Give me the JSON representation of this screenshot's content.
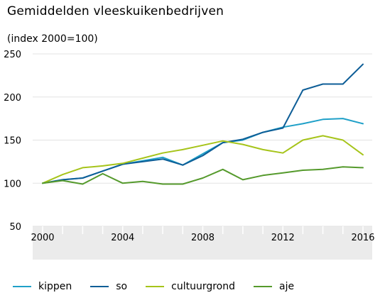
{
  "chart_data": {
    "type": "line",
    "title": "Gemiddelden vleeskuikenbedrijven",
    "subtitle": "(index 2000=100)",
    "x": [
      2000,
      2001,
      2002,
      2003,
      2004,
      2005,
      2006,
      2007,
      2008,
      2009,
      2010,
      2011,
      2012,
      2013,
      2014,
      2015,
      2016
    ],
    "xticks": [
      "2000",
      "2004",
      "2008",
      "2012",
      "2016"
    ],
    "yticks": [
      "50",
      "100",
      "150",
      "200",
      "250"
    ],
    "ylim": [
      50,
      250
    ],
    "xlim": [
      2000,
      2016
    ],
    "grid": true,
    "legend_position": "bottom",
    "series": [
      {
        "name": "kippen",
        "color": "#1fa0c8",
        "values": [
          100,
          104,
          106,
          114,
          122,
          126,
          130,
          121,
          134,
          147,
          150,
          159,
          165,
          169,
          174,
          175,
          169
        ]
      },
      {
        "name": "so",
        "color": "#0e5e97",
        "values": [
          100,
          104,
          106,
          114,
          122,
          125,
          128,
          121,
          132,
          147,
          151,
          159,
          164,
          208,
          215,
          215,
          238
        ]
      },
      {
        "name": "cultuurgrond",
        "color": "#a6c41a",
        "values": [
          100,
          110,
          118,
          120,
          123,
          129,
          135,
          139,
          144,
          149,
          145,
          139,
          135,
          150,
          155,
          150,
          133
        ]
      },
      {
        "name": "aje",
        "color": "#559a2c",
        "values": [
          100,
          103,
          99,
          111,
          100,
          102,
          99,
          99,
          106,
          116,
          104,
          109,
          112,
          115,
          116,
          119,
          118
        ]
      }
    ]
  }
}
